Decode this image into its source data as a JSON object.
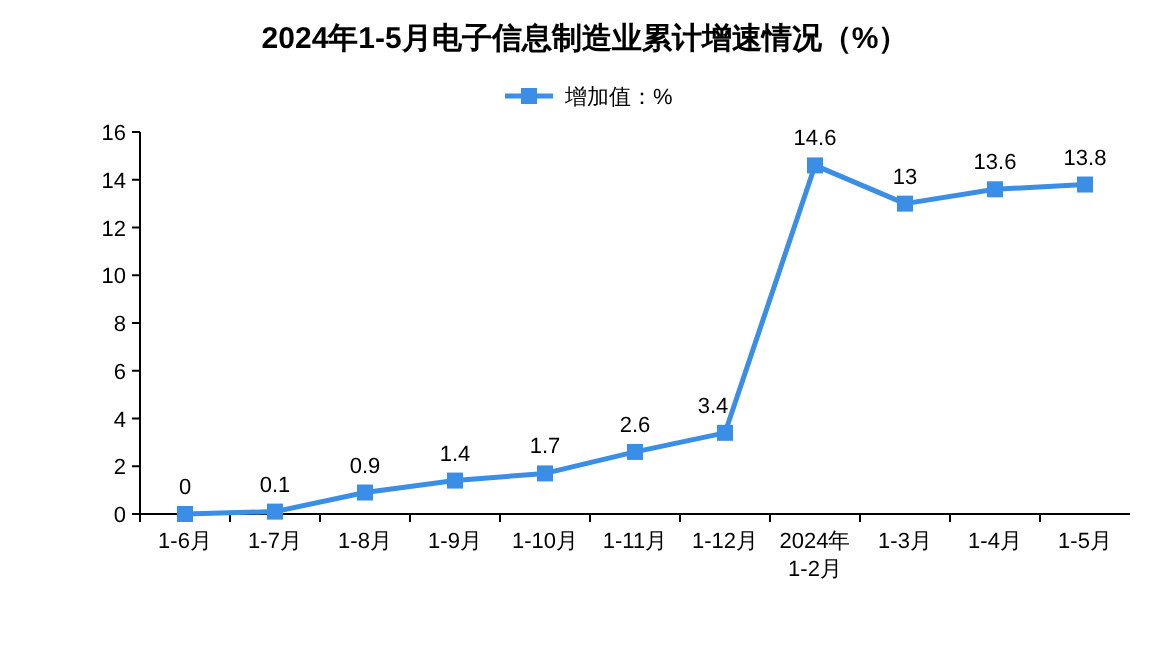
{
  "chart_data": {
    "type": "line",
    "title": "2024年1-5月电子信息制造业累计增速情况（%）",
    "categories": [
      "1-6月",
      "1-7月",
      "1-8月",
      "1-9月",
      "1-10月",
      "1-11月",
      "1-12月",
      "2024年\n1-2月",
      "1-3月",
      "1-4月",
      "1-5月"
    ],
    "series": [
      {
        "name": "增加值：%",
        "color": "#3a8ee6",
        "values": [
          0,
          0.1,
          0.9,
          1.4,
          1.7,
          2.6,
          3.4,
          14.6,
          13,
          13.6,
          13.8
        ]
      }
    ],
    "ylim": [
      0,
      16
    ],
    "yticks": [
      0,
      2,
      4,
      6,
      8,
      10,
      12,
      14,
      16
    ],
    "legend": "top",
    "marker": "square",
    "line_style": "solid",
    "data_labels": true
  }
}
